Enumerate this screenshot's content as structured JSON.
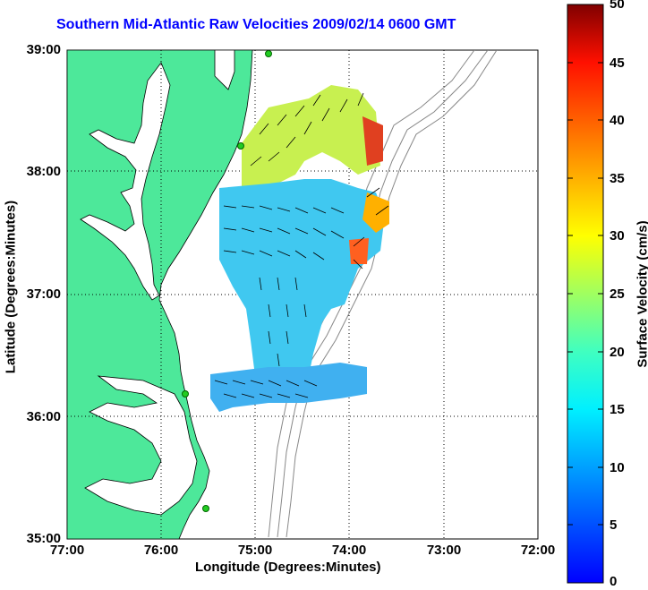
{
  "title": "Southern Mid-Atlantic Raw Velocities 2009/02/14 0600 GMT",
  "x_axis": {
    "label": "Longitude (Degrees:Minutes)",
    "ticks": [
      "77:00",
      "76:00",
      "75:00",
      "74:00",
      "73:00",
      "72:00"
    ]
  },
  "y_axis": {
    "label": "Latitude (Degrees:Minutes)",
    "ticks": [
      "39:00",
      "38:00",
      "37:00",
      "36:00",
      "35:00"
    ]
  },
  "colorbar": {
    "label": "Surface Velocity (cm/s)",
    "ticks": [
      "50",
      "45",
      "40",
      "35",
      "30",
      "25",
      "20",
      "15",
      "10",
      "5",
      "0"
    ],
    "min": 0,
    "max": 50
  },
  "colors": {
    "land": "#4de89a",
    "title": "#0000ff",
    "bathymetry": "#888888",
    "station": "#22cc22"
  }
}
